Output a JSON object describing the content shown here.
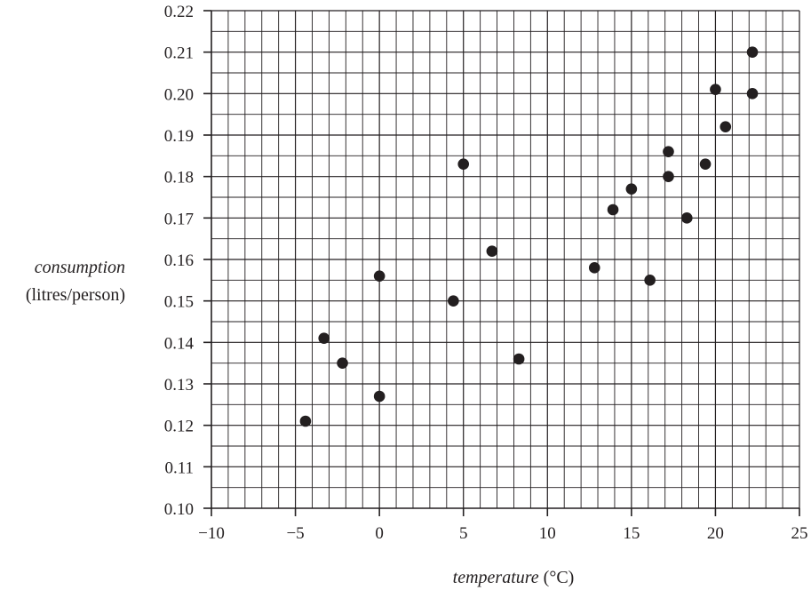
{
  "chart_data": {
    "type": "scatter",
    "title": "",
    "xlabel": "temperature",
    "xlabel_unit": "(°C)",
    "ylabel": "consumption",
    "ylabel_unit": "(litres/person)",
    "xlim": [
      -10,
      25
    ],
    "ylim": [
      0.1,
      0.22
    ],
    "grid": true,
    "x_ticks": [
      -10,
      -5,
      0,
      5,
      10,
      15,
      20,
      25
    ],
    "x_tick_labels": [
      "−10",
      "−5",
      "0",
      "5",
      "10",
      "15",
      "20",
      "25"
    ],
    "y_ticks": [
      0.1,
      0.11,
      0.12,
      0.13,
      0.14,
      0.15,
      0.16,
      0.17,
      0.18,
      0.19,
      0.2,
      0.21,
      0.22
    ],
    "y_tick_labels": [
      "0.10",
      "0.11",
      "0.12",
      "0.13",
      "0.14",
      "0.15",
      "0.16",
      "0.17",
      "0.18",
      "0.19",
      "0.20",
      "0.21",
      "0.22"
    ],
    "colors": {
      "ink": "#231f20",
      "background": "#ffffff"
    },
    "points": [
      {
        "x": -4.4,
        "y": 0.121
      },
      {
        "x": -3.3,
        "y": 0.141
      },
      {
        "x": -2.2,
        "y": 0.135
      },
      {
        "x": 0.0,
        "y": 0.156
      },
      {
        "x": 0.0,
        "y": 0.127
      },
      {
        "x": 4.4,
        "y": 0.15
      },
      {
        "x": 5.0,
        "y": 0.183
      },
      {
        "x": 6.7,
        "y": 0.162
      },
      {
        "x": 8.3,
        "y": 0.136
      },
      {
        "x": 12.8,
        "y": 0.158
      },
      {
        "x": 13.9,
        "y": 0.172
      },
      {
        "x": 15.0,
        "y": 0.177
      },
      {
        "x": 16.1,
        "y": 0.155
      },
      {
        "x": 17.2,
        "y": 0.186
      },
      {
        "x": 17.2,
        "y": 0.18
      },
      {
        "x": 18.3,
        "y": 0.17
      },
      {
        "x": 19.4,
        "y": 0.183
      },
      {
        "x": 20.0,
        "y": 0.201
      },
      {
        "x": 20.6,
        "y": 0.192
      },
      {
        "x": 22.2,
        "y": 0.21
      },
      {
        "x": 22.2,
        "y": 0.2
      }
    ]
  }
}
